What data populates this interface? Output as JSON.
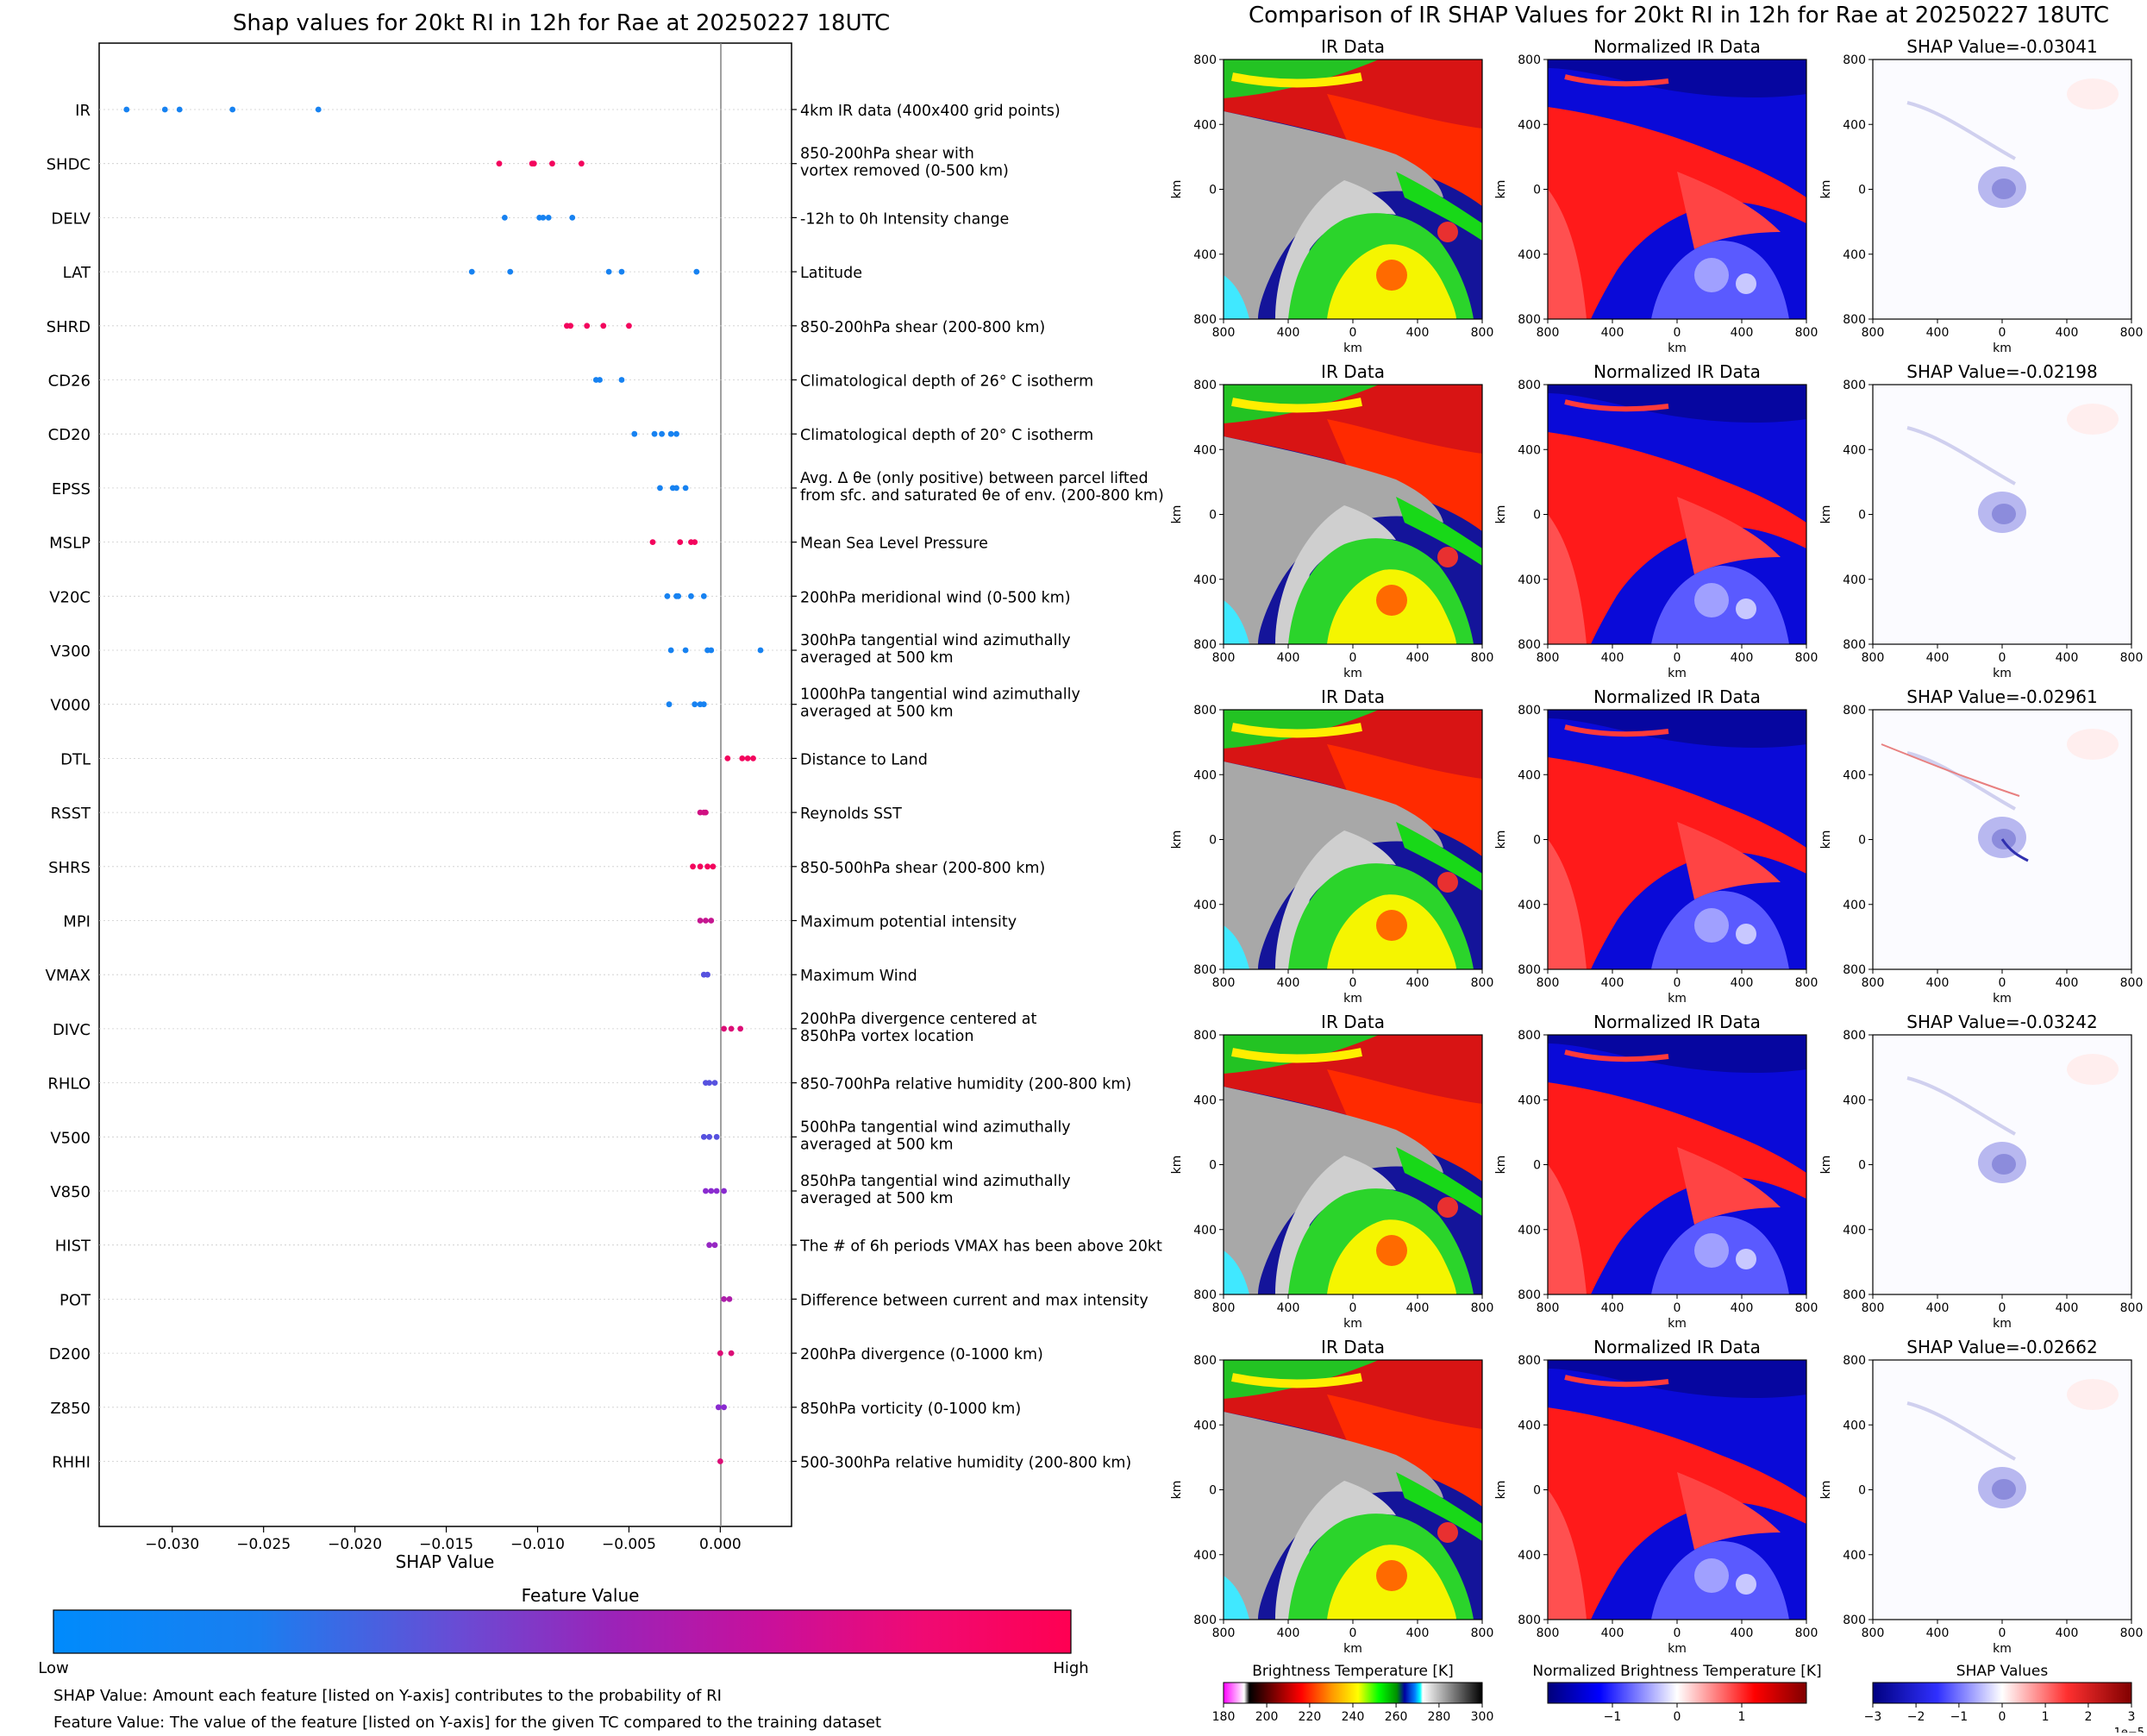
{
  "colors": {
    "low": "#0a8cf5",
    "high": "#ff0050",
    "mid": "#8a2bd0",
    "axis_line": "#000000",
    "zero_line": "#808080"
  },
  "left": {
    "title": "Shap values for 20kt RI in 12h for Rae at 20250227 18UTC",
    "xlabel": "SHAP Value",
    "xticks": [
      "−0.030",
      "−0.025",
      "−0.020",
      "−0.015",
      "−0.010",
      "−0.005",
      "0.000"
    ],
    "colorbar": {
      "label": "Feature Value",
      "low": "Low",
      "high": "High"
    },
    "notes": [
      "SHAP Value: Amount each feature [listed on Y-axis] contributes to the probability of RI",
      "Feature Value: The value of the feature [listed on Y-axis] for the given TC compared to the training dataset"
    ]
  },
  "right": {
    "title": "Comparison of IR SHAP Values for 20kt RI in 12h for Rae at 20250227 18UTC",
    "col_titles": [
      "IR Data",
      "Normalized IR Data"
    ],
    "shap_titles": [
      "SHAP Value=-0.03041",
      "SHAP Value=-0.02198",
      "SHAP Value=-0.02961",
      "SHAP Value=-0.03242",
      "SHAP Value=-0.02662"
    ],
    "tick_labels": [
      "800",
      "400",
      "0",
      "400",
      "800"
    ],
    "axis_label": "km",
    "colorbars": [
      {
        "label": "Brightness Temperature [K]",
        "ticks": [
          "180",
          "200",
          "220",
          "240",
          "260",
          "280",
          "300"
        ]
      },
      {
        "label": "Normalized Brightness Temperature [K]",
        "ticks": [
          "−1",
          "0",
          "1"
        ]
      },
      {
        "label": "SHAP Values",
        "ticks": [
          "−3",
          "−2",
          "−1",
          "0",
          "1",
          "2",
          "3"
        ],
        "exponent": "1e−5"
      }
    ]
  },
  "chart_data": [
    {
      "type": "scatter",
      "title": "Shap values for 20kt RI in 12h for Rae at 20250227 18UTC",
      "xlabel": "SHAP Value",
      "xlim": [
        -0.034,
        0.0039
      ],
      "features": [
        {
          "name": "IR",
          "desc": [
            "4km IR data (400x400 grid points)"
          ],
          "shap": [
            -0.0325,
            -0.0304,
            -0.0296,
            -0.0267,
            -0.022
          ],
          "fv": [
            0.05,
            0.05,
            0.05,
            0.05,
            0.05
          ]
        },
        {
          "name": "SHDC",
          "desc": [
            "850-200hPa shear with",
            "vortex removed (0-500 km)"
          ],
          "shap": [
            -0.0121,
            -0.0103,
            -0.0102,
            -0.0092,
            -0.0076
          ],
          "fv": [
            0.95,
            0.95,
            0.95,
            0.95,
            0.95
          ]
        },
        {
          "name": "DELV",
          "desc": [
            "-12h to 0h Intensity change"
          ],
          "shap": [
            -0.0118,
            -0.0099,
            -0.0097,
            -0.0094,
            -0.0081
          ],
          "fv": [
            0.05,
            0.05,
            0.05,
            0.05,
            0.05
          ]
        },
        {
          "name": "LAT",
          "desc": [
            "Latitude"
          ],
          "shap": [
            -0.0136,
            -0.0115,
            -0.0061,
            -0.0054,
            -0.0013
          ],
          "fv": [
            0.05,
            0.05,
            0.05,
            0.05,
            0.05
          ]
        },
        {
          "name": "SHRD",
          "desc": [
            "850-200hPa shear (200-800 km)"
          ],
          "shap": [
            -0.0084,
            -0.0082,
            -0.0073,
            -0.0064,
            -0.005
          ],
          "fv": [
            0.95,
            0.95,
            0.95,
            0.95,
            0.95
          ]
        },
        {
          "name": "CD26",
          "desc": [
            "Climatological depth of 26° C isotherm"
          ],
          "shap": [
            -0.0068,
            -0.0066,
            -0.0054
          ],
          "fv": [
            0.05,
            0.05,
            0.05
          ]
        },
        {
          "name": "CD20",
          "desc": [
            "Climatological depth of 20° C isotherm"
          ],
          "shap": [
            -0.0047,
            -0.0036,
            -0.0032,
            -0.0027,
            -0.0024
          ],
          "fv": [
            0.05,
            0.05,
            0.05,
            0.05,
            0.05
          ]
        },
        {
          "name": "EPSS",
          "desc": [
            "Avg. Δ θe (only positive) between parcel lifted",
            "from sfc. and saturated θe of env. (200-800 km)"
          ],
          "shap": [
            -0.0033,
            -0.0026,
            -0.0024,
            -0.0019
          ],
          "fv": [
            0.05,
            0.05,
            0.05,
            0.05
          ]
        },
        {
          "name": "MSLP",
          "desc": [
            "Mean Sea Level Pressure"
          ],
          "shap": [
            -0.0037,
            -0.0022,
            -0.0016,
            -0.0014
          ],
          "fv": [
            0.95,
            0.95,
            0.95,
            0.95
          ]
        },
        {
          "name": "V20C",
          "desc": [
            "200hPa meridional wind (0-500 km)"
          ],
          "shap": [
            -0.0029,
            -0.0024,
            -0.0023,
            -0.0016,
            -0.0009
          ],
          "fv": [
            0.05,
            0.05,
            0.05,
            0.05,
            0.05
          ]
        },
        {
          "name": "V300",
          "desc": [
            "300hPa tangential wind azimuthally",
            "averaged at 500 km"
          ],
          "shap": [
            -0.0027,
            -0.0019,
            -0.0007,
            -0.0005,
            0.0022
          ],
          "fv": [
            0.05,
            0.05,
            0.05,
            0.05,
            0.05
          ]
        },
        {
          "name": "V000",
          "desc": [
            "1000hPa tangential wind azimuthally",
            "averaged at 500 km"
          ],
          "shap": [
            -0.0028,
            -0.0014,
            -0.0011,
            -0.0009
          ],
          "fv": [
            0.05,
            0.05,
            0.05,
            0.05
          ]
        },
        {
          "name": "DTL",
          "desc": [
            "Distance to Land"
          ],
          "shap": [
            0.0004,
            0.0012,
            0.0015,
            0.0018
          ],
          "fv": [
            0.95,
            0.95,
            0.95,
            0.95
          ]
        },
        {
          "name": "RSST",
          "desc": [
            "Reynolds SST"
          ],
          "shap": [
            -0.0011,
            -0.0009,
            -0.0008
          ],
          "fv": [
            0.8,
            0.8,
            0.8
          ]
        },
        {
          "name": "SHRS",
          "desc": [
            "850-500hPa shear (200-800 km)"
          ],
          "shap": [
            -0.0015,
            -0.0011,
            -0.0007,
            -0.0004
          ],
          "fv": [
            0.95,
            0.95,
            0.95,
            0.95
          ]
        },
        {
          "name": "MPI",
          "desc": [
            "Maximum potential intensity"
          ],
          "shap": [
            -0.0011,
            -0.0008,
            -0.0005
          ],
          "fv": [
            0.75,
            0.75,
            0.75
          ]
        },
        {
          "name": "VMAX",
          "desc": [
            "Maximum Wind"
          ],
          "shap": [
            -0.0009,
            -0.0007
          ],
          "fv": [
            0.3,
            0.3
          ]
        },
        {
          "name": "DIVC",
          "desc": [
            "200hPa divergence centered at",
            "850hPa vortex location"
          ],
          "shap": [
            0.0002,
            0.0006,
            0.0011
          ],
          "fv": [
            0.85,
            0.85,
            0.85
          ]
        },
        {
          "name": "RHLO",
          "desc": [
            "850-700hPa relative humidity (200-800 km)"
          ],
          "shap": [
            -0.0008,
            -0.0006,
            -0.0003
          ],
          "fv": [
            0.3,
            0.3,
            0.3
          ]
        },
        {
          "name": "V500",
          "desc": [
            "500hPa tangential wind azimuthally",
            "averaged at 500 km"
          ],
          "shap": [
            -0.0009,
            -0.0006,
            -0.0002
          ],
          "fv": [
            0.3,
            0.3,
            0.3
          ]
        },
        {
          "name": "V850",
          "desc": [
            "850hPa tangential wind azimuthally",
            "averaged at 500 km"
          ],
          "shap": [
            -0.0008,
            -0.0005,
            -0.0002,
            0.0002
          ],
          "fv": [
            0.5,
            0.5,
            0.5,
            0.5
          ]
        },
        {
          "name": "HIST",
          "desc": [
            "The # of 6h periods VMAX has been above 20kt"
          ],
          "shap": [
            -0.0006,
            -0.0003
          ],
          "fv": [
            0.55,
            0.55
          ]
        },
        {
          "name": "POT",
          "desc": [
            "Difference between current and max intensity"
          ],
          "shap": [
            0.0002,
            0.0005
          ],
          "fv": [
            0.65,
            0.65
          ]
        },
        {
          "name": "D200",
          "desc": [
            "200hPa divergence (0-1000 km)"
          ],
          "shap": [
            0.0,
            0.0006
          ],
          "fv": [
            0.85,
            0.85
          ]
        },
        {
          "name": "Z850",
          "desc": [
            "850hPa vorticity (0-1000 km)"
          ],
          "shap": [
            -0.0001,
            0.0002
          ],
          "fv": [
            0.5,
            0.5
          ]
        },
        {
          "name": "RHHI",
          "desc": [
            "500-300hPa relative humidity (200-800 km)"
          ],
          "shap": [
            0.0
          ],
          "fv": [
            0.85
          ]
        }
      ]
    },
    {
      "type": "heatmap",
      "title": "Comparison of IR SHAP Values for 20kt RI in 12h for Rae at 20250227 18UTC",
      "rows": 5,
      "columns": [
        "IR Data",
        "Normalized IR Data",
        "SHAP Value"
      ],
      "xlabel": "km",
      "ylabel": "km",
      "xlim": [
        -800,
        800
      ],
      "ylim": [
        -800,
        800
      ],
      "shap_values": [
        -0.03041,
        -0.02198,
        -0.02961,
        -0.03242,
        -0.02662
      ]
    }
  ]
}
